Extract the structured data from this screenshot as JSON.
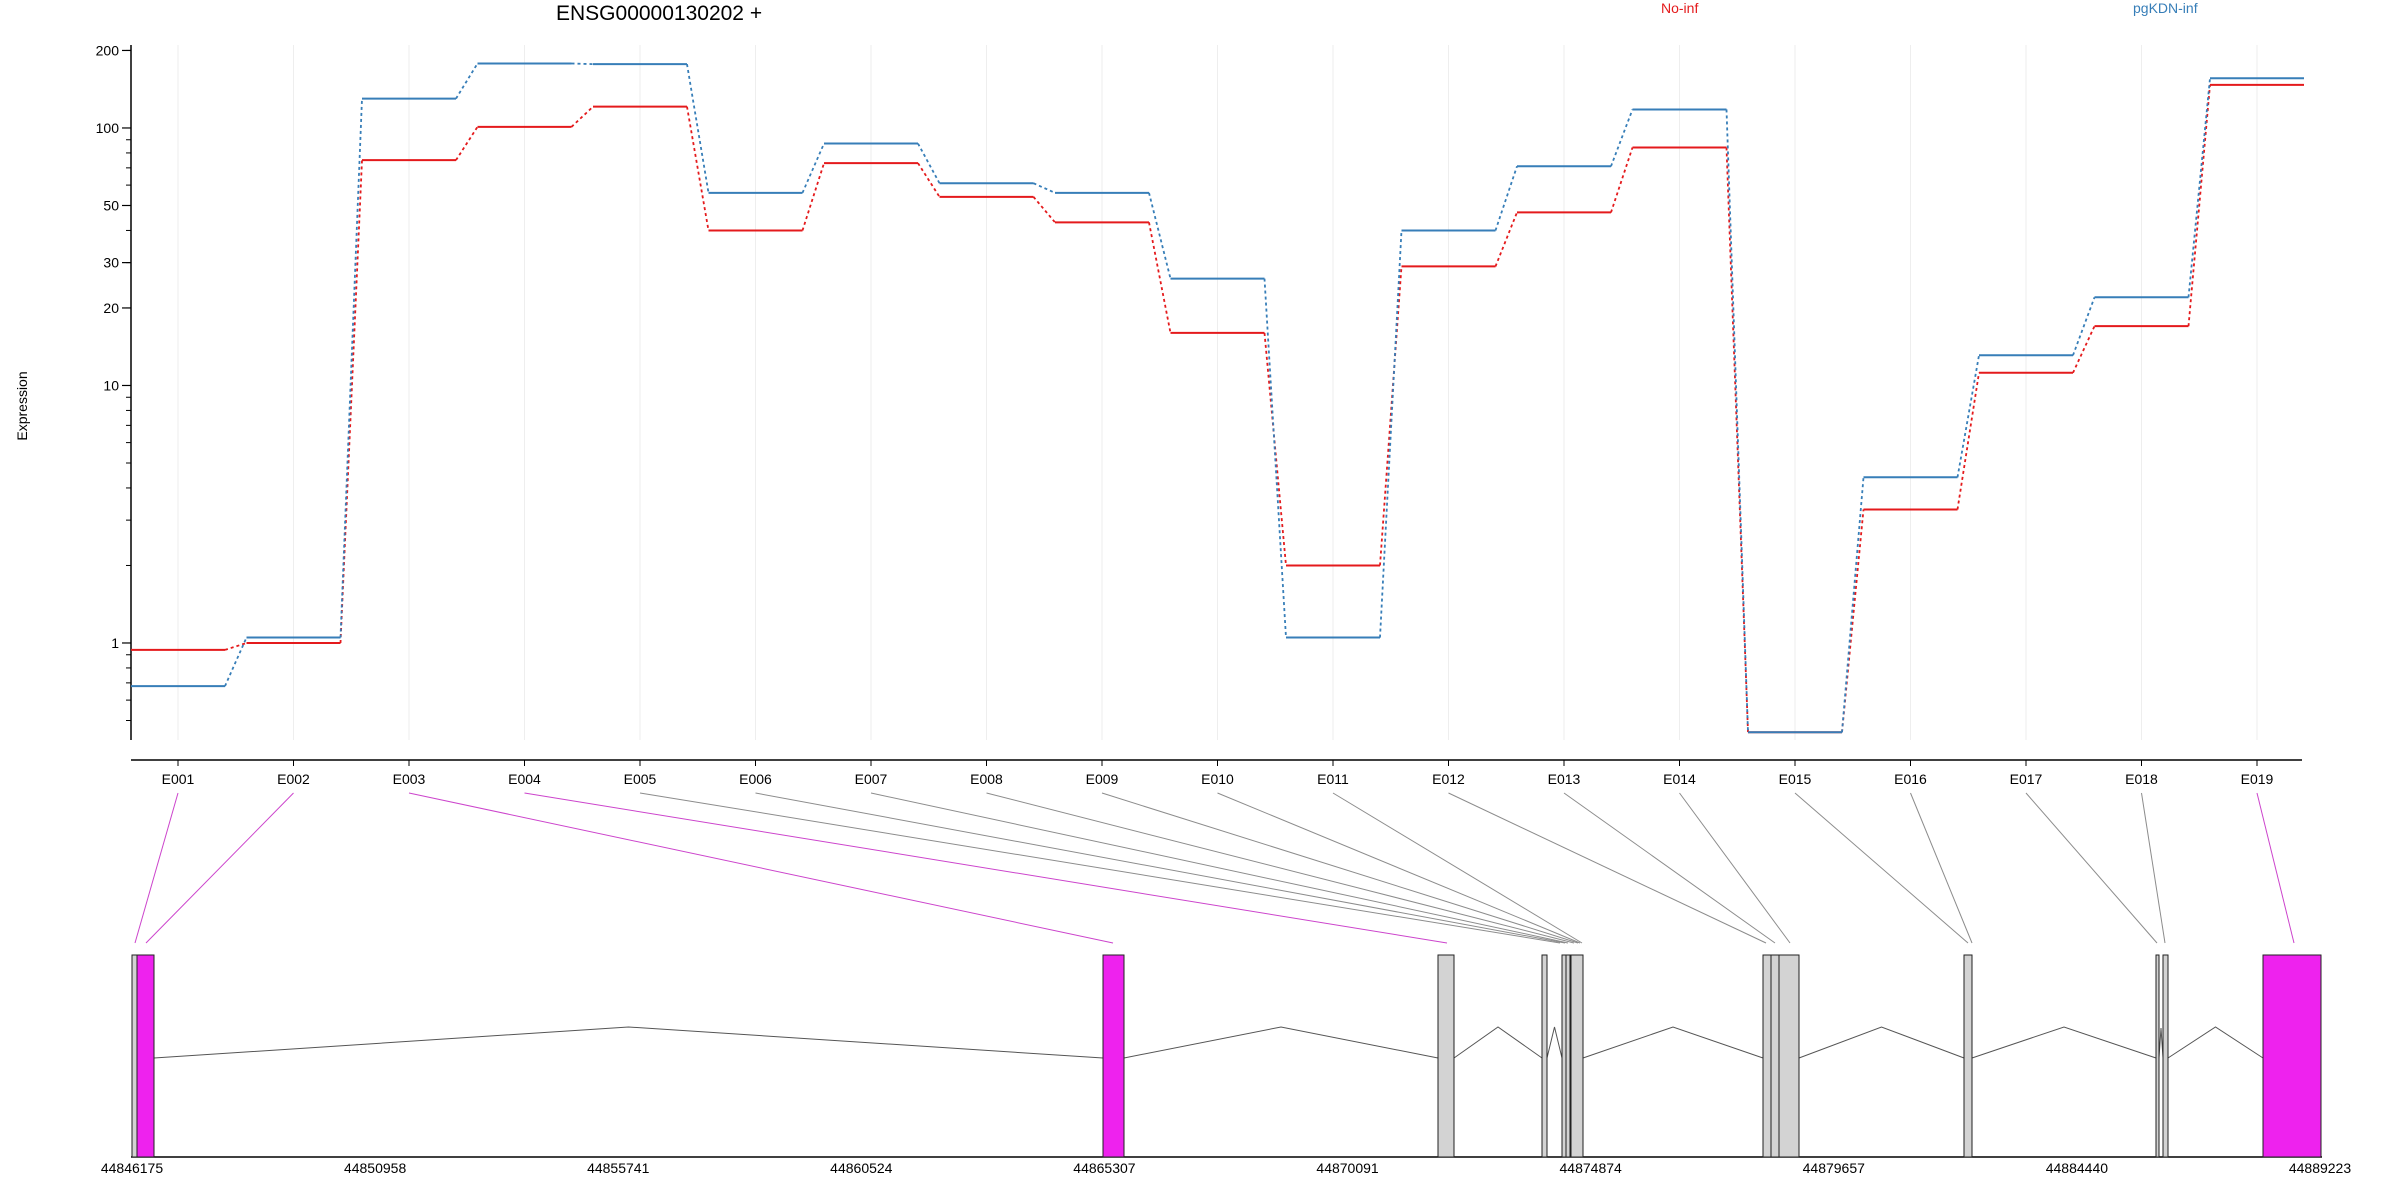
{
  "chart_data": {
    "type": "line",
    "title": "ENSG00000130202 +",
    "ylabel": "Expression",
    "xlabel": "",
    "yscale": "log",
    "ylim": [
      0.42,
      210
    ],
    "yticks": [
      1,
      10,
      20,
      30,
      50,
      100,
      200
    ],
    "grid": true,
    "legend_position": "top-right",
    "categories": [
      "E001",
      "E002",
      "E003",
      "E004",
      "E005",
      "E006",
      "E007",
      "E008",
      "E009",
      "E010",
      "E011",
      "E012",
      "E013",
      "E014",
      "E015",
      "E016",
      "E017",
      "E018",
      "E019"
    ],
    "series": [
      {
        "name": "No-inf",
        "color": "#e41a1c",
        "values": [
          0.94,
          1.0,
          75,
          101,
          121,
          40,
          73,
          54,
          43,
          16,
          2.0,
          29,
          47,
          84,
          0.45,
          3.3,
          11.2,
          17,
          147
        ]
      },
      {
        "name": "pgKDN-inf",
        "color": "#377eb8",
        "values": [
          0.68,
          1.05,
          130,
          178,
          177,
          56,
          87,
          61,
          56,
          26,
          1.05,
          40,
          71,
          118,
          0.45,
          4.4,
          13.1,
          22,
          156
        ]
      }
    ]
  },
  "gene_model": {
    "connector_color_constitutive": "#8c8c8c",
    "connector_color_highlight": "#cc44cc",
    "exon_fill_normal": "#d3d3d3",
    "exon_fill_highlight": "#ee22ee",
    "highlighted_exons": [
      "E001",
      "E002",
      "E003",
      "E004",
      "E019"
    ],
    "genomic_axis_labels": [
      "44846175",
      "44850958",
      "44855741",
      "44860524",
      "44865307",
      "44870091",
      "44874874",
      "44879657",
      "44884440",
      "44889223"
    ]
  }
}
